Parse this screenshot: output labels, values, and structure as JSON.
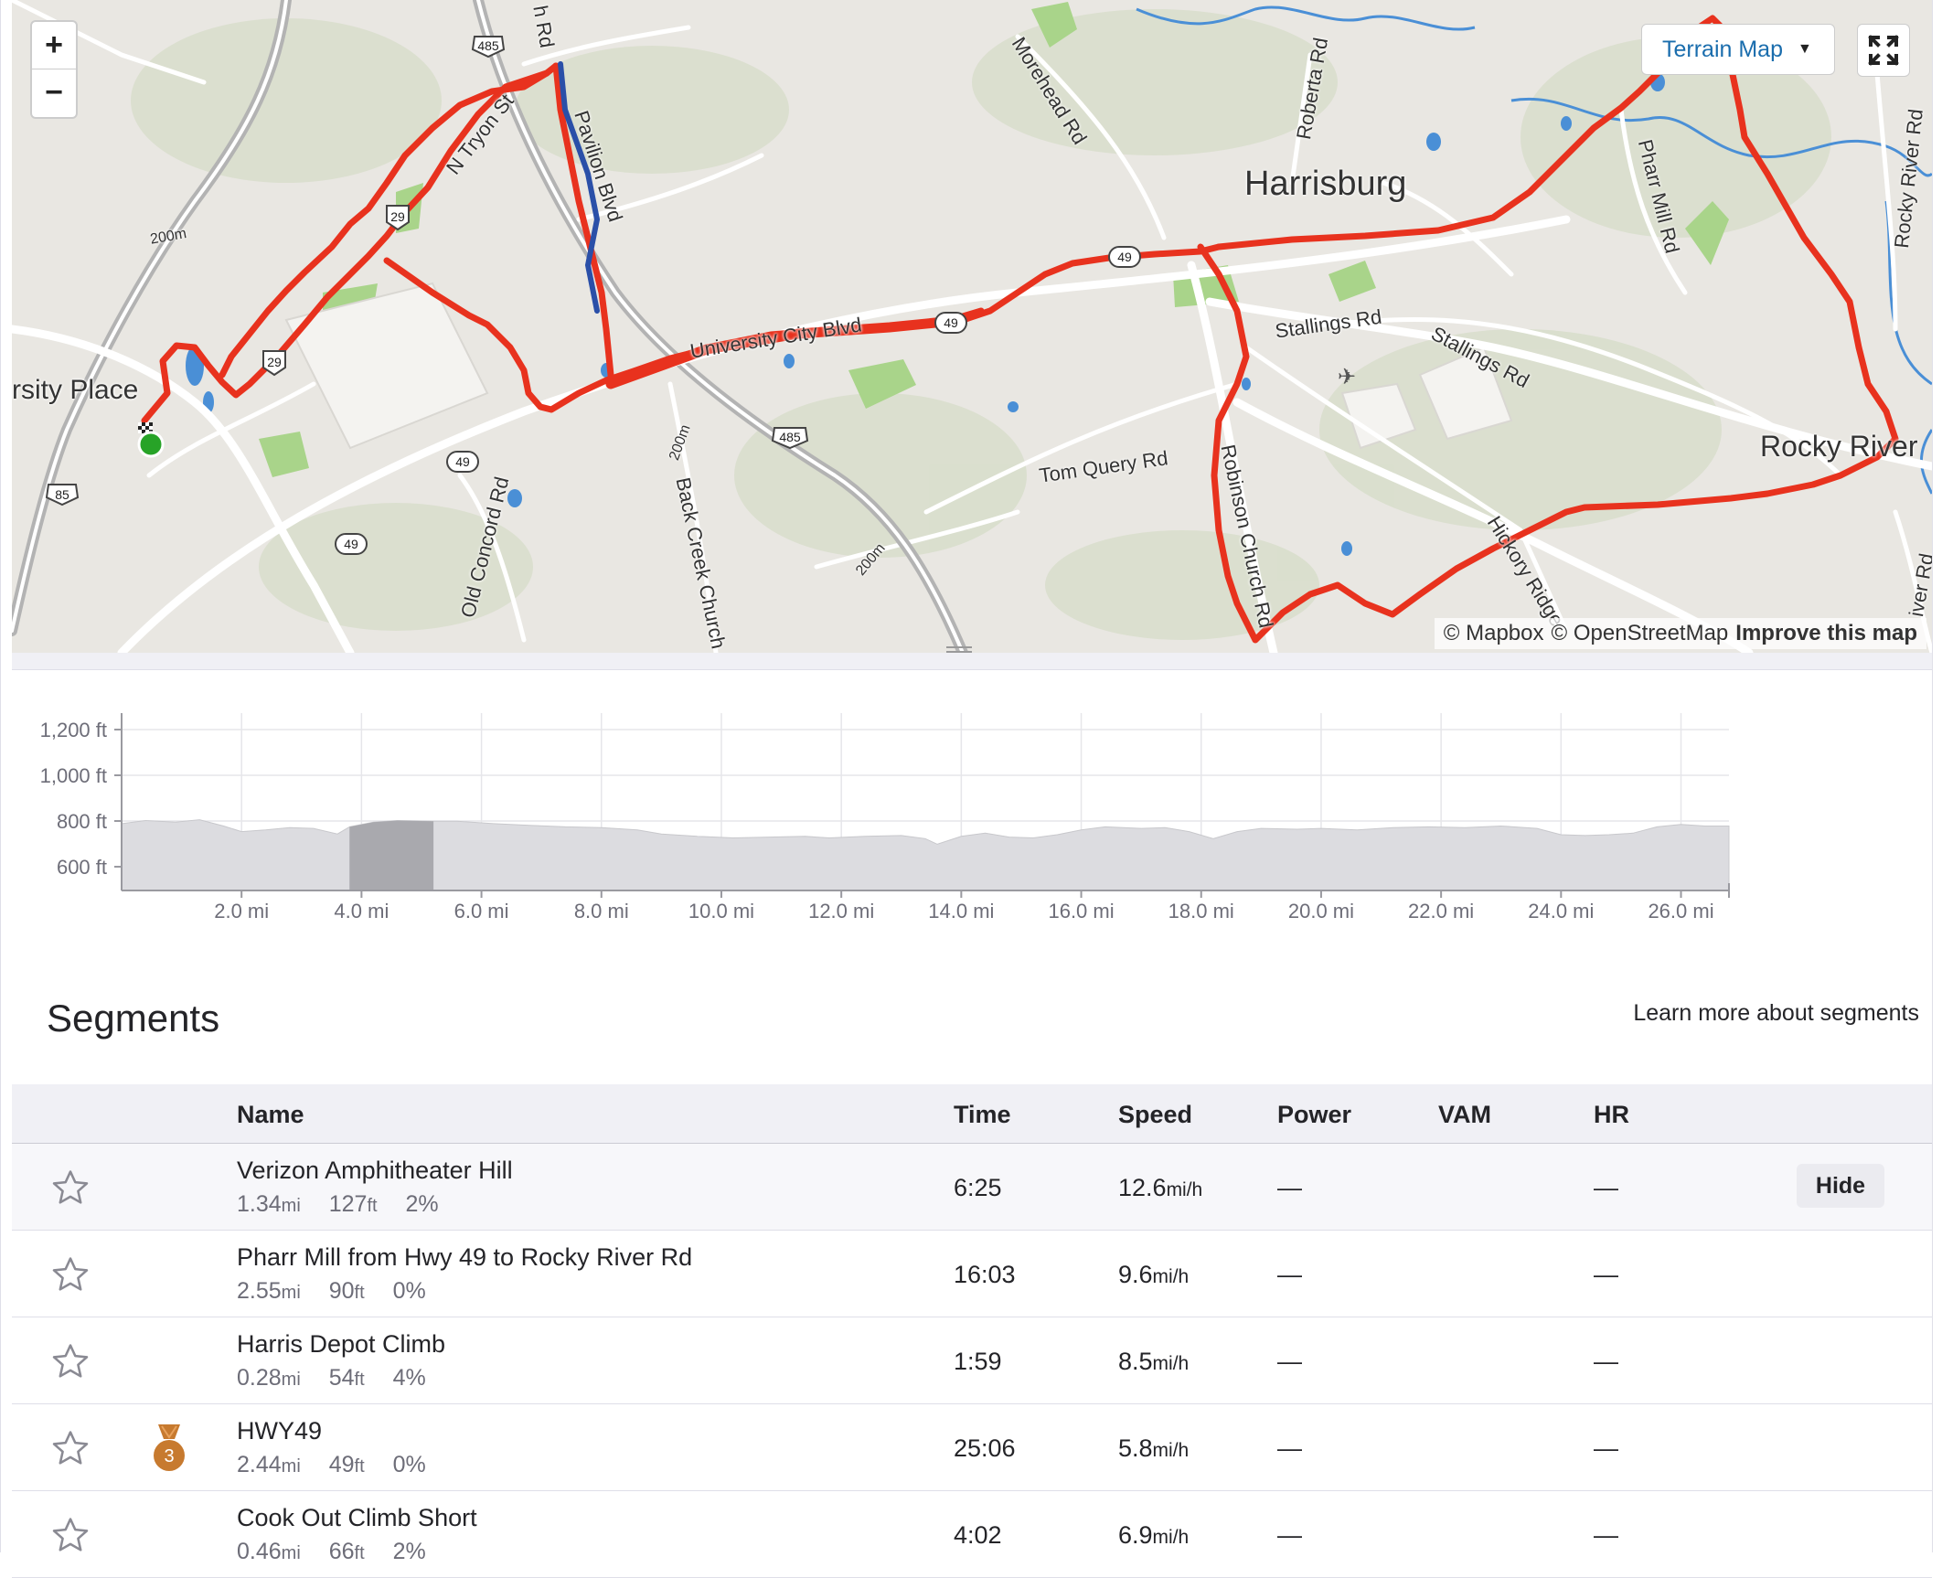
{
  "map": {
    "zoom_in": "+",
    "zoom_out": "−",
    "map_type": "Terrain Map",
    "attribution": {
      "mapbox": "© Mapbox",
      "osm": "© OpenStreetMap",
      "improve": "Improve this map"
    },
    "labels": {
      "harrisburg": "Harrisburg",
      "rocky_river": "Rocky River",
      "university_place": "rsity Place",
      "n_tryon": "N Tryon St",
      "pavilion": "Pavilion Blvd",
      "university_city": "University City Blvd",
      "morehead": "Morehead Rd",
      "roberta": "Roberta Rd",
      "pharr_mill": "Pharr Mill Rd",
      "rocky_river_rd": "Rocky River Rd",
      "stallings1": "Stallings Rd",
      "stallings2": "Stallings Rd",
      "tom_query": "Tom Query Rd",
      "robinson": "Robinson Church Rd",
      "hickory_ridge": "Hickory Ridge",
      "back_creek": "Back Creek Church",
      "old_concord": "Old Concord Rd",
      "contour_200_a": "200m",
      "contour_200_b": "200m",
      "contour_200_c": "200m",
      "h_rd": "h Rd",
      "river_rd": "iver Rd"
    },
    "shields": {
      "i485_top": "485",
      "i485_mid": "485",
      "us29_a": "29",
      "us29_b": "29",
      "nc49_a": "49",
      "nc49_b": "49",
      "i85": "85",
      "nc49_east": "49",
      "route_49_c": "49"
    },
    "colors": {
      "route": "#e8321e",
      "route_highlight": "#2a4fa8",
      "water": "#4a8fd6",
      "park": "#a9d48a",
      "start_marker": "#27a327"
    }
  },
  "elevation": {
    "y_ticks": [
      "1,200 ft",
      "1,000 ft",
      "800 ft",
      "600 ft"
    ],
    "x_ticks": [
      "2.0 mi",
      "4.0 mi",
      "6.0 mi",
      "8.0 mi",
      "10.0 mi",
      "12.0 mi",
      "14.0 mi",
      "16.0 mi",
      "18.0 mi",
      "20.0 mi",
      "22.0 mi",
      "24.0 mi",
      "26.0 mi"
    ],
    "highlight_range_mi": [
      3.8,
      5.2
    ]
  },
  "segments": {
    "title": "Segments",
    "learn_more": "Learn more about segments",
    "columns": {
      "name": "Name",
      "time": "Time",
      "speed": "Speed",
      "power": "Power",
      "vam": "VAM",
      "hr": "HR"
    },
    "hide_label": "Hide",
    "rows": [
      {
        "name": "Verizon Amphitheater Hill",
        "distance": "1.34",
        "distance_unit": "mi",
        "elev": "127",
        "elev_unit": "ft",
        "grade": "2%",
        "time": "6:25",
        "speed": "12.6",
        "speed_unit": "mi/h",
        "power": "—",
        "hr": "—",
        "medal": ""
      },
      {
        "name": "Pharr Mill from Hwy 49 to Rocky River Rd",
        "distance": "2.55",
        "distance_unit": "mi",
        "elev": "90",
        "elev_unit": "ft",
        "grade": "0%",
        "time": "16:03",
        "speed": "9.6",
        "speed_unit": "mi/h",
        "power": "—",
        "hr": "—",
        "medal": ""
      },
      {
        "name": "Harris Depot Climb",
        "distance": "0.28",
        "distance_unit": "mi",
        "elev": "54",
        "elev_unit": "ft",
        "grade": "4%",
        "time": "1:59",
        "speed": "8.5",
        "speed_unit": "mi/h",
        "power": "—",
        "hr": "—",
        "medal": ""
      },
      {
        "name": "HWY49",
        "distance": "2.44",
        "distance_unit": "mi",
        "elev": "49",
        "elev_unit": "ft",
        "grade": "0%",
        "time": "25:06",
        "speed": "5.8",
        "speed_unit": "mi/h",
        "power": "—",
        "hr": "—",
        "medal": "3"
      },
      {
        "name": "Cook Out Climb Short",
        "distance": "0.46",
        "distance_unit": "mi",
        "elev": "66",
        "elev_unit": "ft",
        "grade": "2%",
        "time": "4:02",
        "speed": "6.9",
        "speed_unit": "mi/h",
        "power": "—",
        "hr": "—",
        "medal": ""
      }
    ]
  }
}
